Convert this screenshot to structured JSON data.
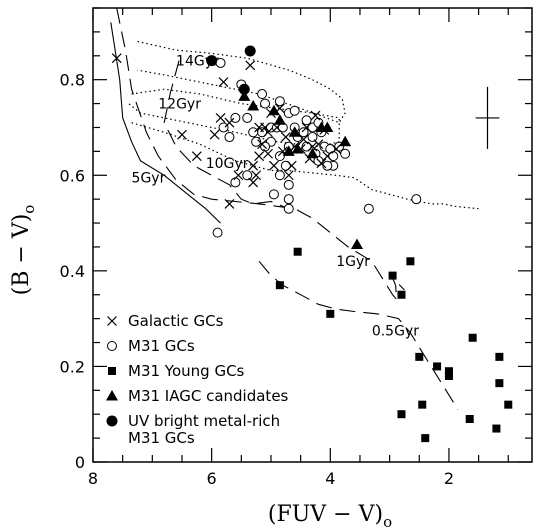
{
  "chart_data": {
    "type": "scatter",
    "x_axis": {
      "label_main": "(FUV − V)",
      "label_sub": "o",
      "range": [
        8,
        0.6
      ],
      "ticks": [
        {
          "value": 8,
          "label": "8"
        },
        {
          "value": 6,
          "label": "6"
        },
        {
          "value": 4,
          "label": "4"
        },
        {
          "value": 2,
          "label": "2"
        }
      ],
      "minor_step": 0.5
    },
    "y_axis": {
      "label_main": "(B − V)",
      "label_sub": "o",
      "range": [
        0,
        0.95
      ],
      "ticks": [
        {
          "value": 0,
          "label": "0"
        },
        {
          "value": 0.2,
          "label": "0.2"
        },
        {
          "value": 0.4,
          "label": "0.4"
        },
        {
          "value": 0.6,
          "label": "0.6"
        },
        {
          "value": 0.8,
          "label": "0.8"
        }
      ],
      "minor_step": 0.05
    },
    "legend": {
      "placement": "bottom-left",
      "entries": [
        {
          "marker": "cross",
          "label": "Galactic GCs"
        },
        {
          "marker": "open-circle",
          "label": "M31 GCs"
        },
        {
          "marker": "filled-square",
          "label": "M31 Young GCs"
        },
        {
          "marker": "filled-triangle",
          "label": "M31 IAGC candidates"
        },
        {
          "marker": "filled-circle",
          "label": "UV bright metal-rich",
          "label2": "M31 GCs"
        }
      ]
    },
    "annotations": [
      {
        "text": "14Gyr",
        "x": 6.6,
        "y": 0.83
      },
      {
        "text": "12Gyr",
        "x": 6.9,
        "y": 0.74
      },
      {
        "text": "10Gyr",
        "x": 6.1,
        "y": 0.615
      },
      {
        "text": "5Gyr",
        "x": 7.35,
        "y": 0.585
      },
      {
        "text": "1Gyr",
        "x": 3.9,
        "y": 0.41
      },
      {
        "text": "0.5Gyr",
        "x": 3.3,
        "y": 0.265
      }
    ],
    "error_bar": {
      "x": 1.35,
      "y": 0.72,
      "dx": 0.2,
      "dy": 0.065
    },
    "isochrones": [
      {
        "age": "14Gyr",
        "style": "dotted",
        "points": [
          [
            7.25,
            0.88
          ],
          [
            6.6,
            0.862
          ],
          [
            6.0,
            0.855
          ],
          [
            5.4,
            0.845
          ],
          [
            4.7,
            0.82
          ],
          [
            4.3,
            0.8
          ],
          [
            4.0,
            0.78
          ],
          [
            3.8,
            0.76
          ],
          [
            3.75,
            0.73
          ],
          [
            3.85,
            0.71
          ],
          [
            4.5,
            0.74
          ],
          [
            5.2,
            0.77
          ],
          [
            6.0,
            0.79
          ],
          [
            6.8,
            0.81
          ],
          [
            7.25,
            0.82
          ]
        ]
      },
      {
        "age": "12Gyr",
        "style": "dotted",
        "points": [
          [
            7.35,
            0.77
          ],
          [
            6.8,
            0.78
          ],
          [
            6.2,
            0.77
          ],
          [
            5.5,
            0.75
          ],
          [
            4.9,
            0.74
          ],
          [
            4.3,
            0.73
          ],
          [
            3.85,
            0.72
          ],
          [
            3.85,
            0.67
          ],
          [
            4.2,
            0.66
          ],
          [
            4.9,
            0.67
          ],
          [
            5.6,
            0.69
          ],
          [
            6.4,
            0.71
          ],
          [
            7.2,
            0.73
          ],
          [
            7.4,
            0.75
          ]
        ]
      },
      {
        "age": "10Gyr",
        "style": "dotted",
        "points": [
          [
            7.35,
            0.71
          ],
          [
            6.8,
            0.69
          ],
          [
            6.2,
            0.665
          ],
          [
            5.6,
            0.63
          ],
          [
            5.0,
            0.61
          ],
          [
            4.7,
            0.61
          ],
          [
            4.3,
            0.605
          ],
          [
            3.9,
            0.6
          ],
          [
            3.6,
            0.595
          ],
          [
            3.3,
            0.57
          ],
          [
            3.0,
            0.56
          ],
          [
            2.7,
            0.55
          ],
          [
            2.5,
            0.545
          ],
          [
            2.3,
            0.54
          ],
          [
            2.1,
            0.54
          ],
          [
            1.9,
            0.535
          ],
          [
            1.5,
            0.53
          ]
        ]
      },
      {
        "age": "5Gyr",
        "style": "solid",
        "points": [
          [
            7.7,
            0.92
          ],
          [
            7.55,
            0.8
          ],
          [
            7.5,
            0.72
          ],
          [
            7.35,
            0.67
          ],
          [
            7.2,
            0.63
          ],
          [
            6.8,
            0.6
          ],
          [
            6.4,
            0.56
          ],
          [
            6.1,
            0.53
          ],
          [
            5.85,
            0.5
          ]
        ]
      },
      {
        "age": "1Gyr",
        "style": "long-dash",
        "points": [
          [
            7.6,
            0.95
          ],
          [
            7.45,
            0.86
          ],
          [
            7.35,
            0.78
          ],
          [
            7.1,
            0.69
          ],
          [
            6.9,
            0.64
          ],
          [
            6.6,
            0.59
          ],
          [
            6.3,
            0.56
          ],
          [
            6.0,
            0.55
          ],
          [
            5.6,
            0.545
          ],
          [
            5.2,
            0.54
          ],
          [
            4.9,
            0.535
          ],
          [
            4.6,
            0.53
          ],
          [
            4.3,
            0.51
          ],
          [
            4.0,
            0.48
          ],
          [
            3.7,
            0.45
          ],
          [
            3.3,
            0.42
          ],
          [
            3.1,
            0.38
          ],
          [
            2.95,
            0.35
          ],
          [
            2.88,
            0.34
          ],
          [
            2.9,
            0.37
          ],
          [
            2.95,
            0.385
          ],
          [
            2.75,
            0.36
          ]
        ]
      },
      {
        "age": "0.5Gyr",
        "style": "long-dash",
        "points": [
          [
            5.2,
            0.42
          ],
          [
            5.0,
            0.39
          ],
          [
            4.8,
            0.37
          ],
          [
            4.5,
            0.35
          ],
          [
            4.2,
            0.33
          ],
          [
            3.9,
            0.32
          ],
          [
            3.6,
            0.315
          ],
          [
            3.2,
            0.31
          ],
          [
            2.85,
            0.3
          ],
          [
            2.65,
            0.27
          ],
          [
            2.45,
            0.23
          ],
          [
            2.25,
            0.19
          ],
          [
            2.05,
            0.15
          ],
          [
            1.85,
            0.11
          ]
        ]
      },
      {
        "age": "",
        "style": "long-dash",
        "points": [
          [
            6.55,
            0.84
          ],
          [
            6.7,
            0.77
          ],
          [
            6.8,
            0.71
          ],
          [
            6.6,
            0.66
          ],
          [
            6.3,
            0.62
          ],
          [
            6.0,
            0.6
          ],
          [
            5.7,
            0.58
          ],
          [
            5.5,
            0.55
          ],
          [
            5.3,
            0.54
          ],
          [
            5.0,
            0.545
          ],
          [
            4.7,
            0.53
          ]
        ]
      }
    ],
    "series": [
      {
        "name": "Galactic GCs",
        "marker": "cross",
        "points": [
          [
            7.6,
            0.845
          ],
          [
            5.8,
            0.795
          ],
          [
            5.35,
            0.83
          ],
          [
            5.7,
            0.71
          ],
          [
            5.85,
            0.72
          ],
          [
            6.5,
            0.685
          ],
          [
            6.25,
            0.64
          ],
          [
            5.95,
            0.685
          ],
          [
            5.3,
            0.62
          ],
          [
            5.25,
            0.6
          ],
          [
            5.55,
            0.6
          ],
          [
            5.3,
            0.585
          ],
          [
            5.2,
            0.64
          ],
          [
            5.15,
            0.665
          ],
          [
            5.05,
            0.645
          ],
          [
            4.95,
            0.62
          ],
          [
            5.05,
            0.69
          ],
          [
            4.9,
            0.7
          ],
          [
            5.2,
            0.7
          ],
          [
            5.0,
            0.73
          ],
          [
            4.8,
            0.65
          ],
          [
            4.6,
            0.66
          ],
          [
            4.5,
            0.655
          ],
          [
            4.45,
            0.675
          ],
          [
            4.35,
            0.635
          ],
          [
            4.3,
            0.66
          ],
          [
            4.2,
            0.665
          ],
          [
            4.15,
            0.625
          ],
          [
            4.4,
            0.7
          ],
          [
            4.25,
            0.725
          ],
          [
            4.1,
            0.695
          ],
          [
            3.9,
            0.655
          ],
          [
            4.65,
            0.62
          ],
          [
            4.7,
            0.6
          ],
          [
            5.7,
            0.54
          ],
          [
            5.1,
            0.7
          ],
          [
            4.75,
            0.68
          ],
          [
            4.05,
            0.64
          ],
          [
            4.85,
            0.74
          ]
        ]
      },
      {
        "name": "M31 GCs",
        "marker": "open-circle",
        "points": [
          [
            5.85,
            0.835
          ],
          [
            5.5,
            0.79
          ],
          [
            5.15,
            0.77
          ],
          [
            5.4,
            0.72
          ],
          [
            5.6,
            0.72
          ],
          [
            5.8,
            0.7
          ],
          [
            5.7,
            0.68
          ],
          [
            5.1,
            0.75
          ],
          [
            5.0,
            0.7
          ],
          [
            4.85,
            0.755
          ],
          [
            4.7,
            0.73
          ],
          [
            4.6,
            0.735
          ],
          [
            4.4,
            0.715
          ],
          [
            4.3,
            0.7
          ],
          [
            4.2,
            0.71
          ],
          [
            4.15,
            0.69
          ],
          [
            4.1,
            0.66
          ],
          [
            4.0,
            0.655
          ],
          [
            3.95,
            0.64
          ],
          [
            3.85,
            0.66
          ],
          [
            3.75,
            0.645
          ],
          [
            3.95,
            0.62
          ],
          [
            4.25,
            0.645
          ],
          [
            4.4,
            0.66
          ],
          [
            4.55,
            0.68
          ],
          [
            4.7,
            0.66
          ],
          [
            4.85,
            0.64
          ],
          [
            5.0,
            0.67
          ],
          [
            5.1,
            0.66
          ],
          [
            5.15,
            0.69
          ],
          [
            5.3,
            0.69
          ],
          [
            5.25,
            0.67
          ],
          [
            4.9,
            0.7
          ],
          [
            4.8,
            0.7
          ],
          [
            4.6,
            0.7
          ],
          [
            4.75,
            0.62
          ],
          [
            4.85,
            0.6
          ],
          [
            4.7,
            0.58
          ],
          [
            4.95,
            0.56
          ],
          [
            4.7,
            0.55
          ],
          [
            4.7,
            0.53
          ],
          [
            5.4,
            0.6
          ],
          [
            5.6,
            0.585
          ],
          [
            5.9,
            0.48
          ],
          [
            3.35,
            0.53
          ],
          [
            2.55,
            0.55
          ],
          [
            4.45,
            0.69
          ],
          [
            4.3,
            0.68
          ],
          [
            4.2,
            0.63
          ],
          [
            4.05,
            0.62
          ]
        ]
      },
      {
        "name": "M31 Young GCs",
        "marker": "filled-square",
        "points": [
          [
            4.55,
            0.44
          ],
          [
            4.85,
            0.37
          ],
          [
            4.0,
            0.31
          ],
          [
            2.95,
            0.39
          ],
          [
            2.65,
            0.42
          ],
          [
            2.8,
            0.35
          ],
          [
            2.5,
            0.22
          ],
          [
            2.2,
            0.2
          ],
          [
            2.0,
            0.19
          ],
          [
            2.0,
            0.18
          ],
          [
            1.6,
            0.26
          ],
          [
            1.15,
            0.22
          ],
          [
            1.15,
            0.165
          ],
          [
            1.2,
            0.07
          ],
          [
            1.0,
            0.12
          ],
          [
            1.65,
            0.09
          ],
          [
            2.8,
            0.1
          ],
          [
            2.45,
            0.12
          ],
          [
            2.4,
            0.05
          ]
        ]
      },
      {
        "name": "M31 IAGC candidates",
        "marker": "filled-triangle",
        "points": [
          [
            5.45,
            0.765
          ],
          [
            5.3,
            0.745
          ],
          [
            4.95,
            0.735
          ],
          [
            4.85,
            0.715
          ],
          [
            4.6,
            0.69
          ],
          [
            4.3,
            0.645
          ],
          [
            4.55,
            0.655
          ],
          [
            4.7,
            0.65
          ],
          [
            4.15,
            0.7
          ],
          [
            4.05,
            0.7
          ],
          [
            3.75,
            0.67
          ],
          [
            3.55,
            0.455
          ]
        ]
      },
      {
        "name": "UV bright metal-rich M31 GCs",
        "marker": "filled-circle",
        "points": [
          [
            6.0,
            0.84
          ],
          [
            5.35,
            0.86
          ],
          [
            5.45,
            0.78
          ]
        ]
      }
    ]
  }
}
